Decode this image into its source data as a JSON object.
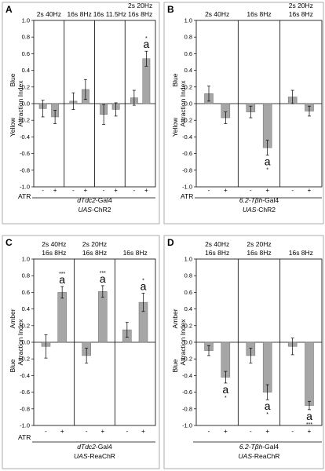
{
  "chart_data": [
    {
      "type": "bar",
      "panel": "A",
      "ylabel_top": "Blue",
      "ylabel_bottom": "Yellow",
      "ylabel_main": "Attraction Index",
      "ylim": [
        -1.0,
        1.0
      ],
      "yticks": [
        "1.0",
        "0.8",
        "0.6",
        "0.4",
        "0.2",
        "0.0",
        "-0.2",
        "-0.4",
        "-0.6",
        "-0.8",
        "-1.0"
      ],
      "atr_label": "ATR",
      "genotype": [
        "dTdc2-Gal4",
        "UAS-ChR2"
      ],
      "groups": [
        {
          "label": [
            "2s 40Hz"
          ],
          "values": [
            -0.06,
            -0.16
          ],
          "errors": [
            0.1,
            0.08
          ],
          "sig": [
            "",
            ""
          ],
          "stars": [
            "",
            ""
          ]
        },
        {
          "label": [
            "16s 8Hz"
          ],
          "values": [
            0.03,
            0.17
          ],
          "errors": [
            0.1,
            0.12
          ],
          "sig": [
            "",
            ""
          ],
          "stars": [
            "",
            ""
          ]
        },
        {
          "label": [
            "16s 11.5Hz"
          ],
          "values": [
            -0.13,
            -0.07
          ],
          "errors": [
            0.12,
            0.08
          ],
          "sig": [
            "",
            ""
          ],
          "stars": [
            "",
            ""
          ]
        },
        {
          "label": [
            "2s 20Hz",
            "16s 8Hz"
          ],
          "values": [
            0.07,
            0.54
          ],
          "errors": [
            0.09,
            0.09
          ],
          "sig": [
            "",
            "a"
          ],
          "stars": [
            "",
            "*"
          ]
        }
      ],
      "atr": [
        "-",
        "+"
      ]
    },
    {
      "type": "bar",
      "panel": "B",
      "ylabel_top": "Blue",
      "ylabel_bottom": "Yellow",
      "ylabel_main": "Attraction Index",
      "ylim": [
        -1.0,
        1.0
      ],
      "yticks": [
        "1.0",
        "0.8",
        "0.6",
        "0.4",
        "0.2",
        "0.0",
        "-0.2",
        "-0.4",
        "-0.6",
        "-0.8",
        "-1.0"
      ],
      "atr_label": "ATR",
      "genotype": [
        "6.2-Tβh-Gal4",
        "UAS-ChR2"
      ],
      "groups": [
        {
          "label": [
            "2s 40Hz"
          ],
          "values": [
            0.12,
            -0.17
          ],
          "errors": [
            0.09,
            0.07
          ],
          "sig": [
            "",
            ""
          ],
          "stars": [
            "",
            ""
          ]
        },
        {
          "label": [
            "16s 8Hz"
          ],
          "values": [
            -0.1,
            -0.53
          ],
          "errors": [
            0.07,
            0.09
          ],
          "sig": [
            "",
            "a"
          ],
          "stars": [
            "",
            "*"
          ]
        },
        {
          "label": [
            "2s 20Hz",
            "16s 8Hz"
          ],
          "values": [
            0.08,
            -0.09
          ],
          "errors": [
            0.08,
            0.06
          ],
          "sig": [
            "",
            ""
          ],
          "stars": [
            "",
            ""
          ]
        }
      ],
      "atr": [
        "-",
        "+"
      ]
    },
    {
      "type": "bar",
      "panel": "C",
      "ylabel_top": "Amber",
      "ylabel_bottom": "Blue",
      "ylabel_main": "Attraction Index",
      "ylim": [
        -1.0,
        1.0
      ],
      "yticks": [
        "1.0",
        "0.8",
        "0.6",
        "0.4",
        "0.2",
        "0.0",
        "-0.2",
        "-0.4",
        "-0.6",
        "-0.8",
        "-1.0"
      ],
      "atr_label": "ATR",
      "genotype": [
        "dTdc2-Gal4",
        "UAS-ReaChR"
      ],
      "groups": [
        {
          "label": [
            "2s 40Hz",
            "16s 8Hz"
          ],
          "values": [
            -0.05,
            0.6
          ],
          "errors": [
            0.14,
            0.07
          ],
          "sig": [
            "",
            "a"
          ],
          "stars": [
            "",
            "***"
          ]
        },
        {
          "label": [
            "2s 20Hz",
            "16s 8Hz"
          ],
          "values": [
            -0.16,
            0.61
          ],
          "errors": [
            0.09,
            0.07
          ],
          "sig": [
            "",
            "a"
          ],
          "stars": [
            "",
            "***"
          ]
        },
        {
          "label": [
            "16s 8Hz"
          ],
          "values": [
            0.15,
            0.48
          ],
          "errors": [
            0.09,
            0.11
          ],
          "sig": [
            "",
            "a"
          ],
          "stars": [
            "",
            "*"
          ]
        }
      ],
      "atr": [
        "-",
        "+"
      ]
    },
    {
      "type": "bar",
      "panel": "D",
      "ylabel_top": "Amber",
      "ylabel_bottom": "Blue",
      "ylabel_main": "Attraction Index",
      "ylim": [
        -1.0,
        1.0
      ],
      "yticks": [
        "1.0",
        "0.8",
        "0.6",
        "0.4",
        "0.2",
        "0.0",
        "-0.2",
        "-0.4",
        "-0.6",
        "-0.8",
        "-1.0"
      ],
      "atr_label": "",
      "genotype": [
        "6.2-Tβh-Gal4",
        "UAS-ReaChR"
      ],
      "groups": [
        {
          "label": [
            "2s 40Hz",
            "16s 8Hz"
          ],
          "values": [
            -0.1,
            -0.42
          ],
          "errors": [
            0.06,
            0.07
          ],
          "sig": [
            "",
            "a"
          ],
          "stars": [
            "",
            "*"
          ]
        },
        {
          "label": [
            "2s 20Hz",
            "16s 8Hz"
          ],
          "values": [
            -0.16,
            -0.6
          ],
          "errors": [
            0.09,
            0.09
          ],
          "sig": [
            "",
            "a"
          ],
          "stars": [
            "",
            "*"
          ]
        },
        {
          "label": [
            "16s 8Hz"
          ],
          "values": [
            -0.05,
            -0.76
          ],
          "errors": [
            0.1,
            0.05
          ],
          "sig": [
            "",
            "a"
          ],
          "stars": [
            "",
            "***"
          ]
        }
      ],
      "atr": [
        "-",
        "+"
      ]
    }
  ],
  "colors": {
    "bar": "#a6a6a6",
    "axis": "#000000",
    "frame": "#9a9a9a",
    "text": "#000000"
  }
}
